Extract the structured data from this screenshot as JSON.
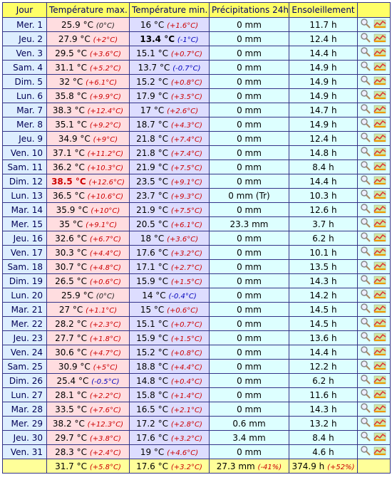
{
  "table": {
    "header": [
      "Jour",
      "Température max.",
      "Température min.",
      "Précipitations 24h",
      "Ensoleillement"
    ],
    "rows": [
      [
        "Mer. 1",
        "25.9 °C",
        "(0°C)",
        "16 °C",
        "(+1.6°C)",
        "0 mm",
        "11.7 h"
      ],
      [
        "Jeu. 2",
        "27.9 °C",
        "(+2°C)",
        "13.4 °C",
        "(-1°C)",
        "0 mm",
        "12.4 h"
      ],
      [
        "Ven. 3",
        "29.5 °C",
        "(+3.6°C)",
        "15.1 °C",
        "(+0.7°C)",
        "0 mm",
        "14.4 h"
      ],
      [
        "Sam. 4",
        "31.1 °C",
        "(+5.2°C)",
        "13.7 °C",
        "(-0.7°C)",
        "0 mm",
        "14.9 h"
      ],
      [
        "Dim. 5",
        "32 °C",
        "(+6.1°C)",
        "15.2 °C",
        "(+0.8°C)",
        "0 mm",
        "14.9 h"
      ],
      [
        "Lun. 6",
        "35.8 °C",
        "(+9.9°C)",
        "17.9 °C",
        "(+3.5°C)",
        "0 mm",
        "14.9 h"
      ],
      [
        "Mar. 7",
        "38.3 °C",
        "(+12.4°C)",
        "17 °C",
        "(+2.6°C)",
        "0 mm",
        "14.7 h"
      ],
      [
        "Mer. 8",
        "35.1 °C",
        "(+9.2°C)",
        "18.7 °C",
        "(+4.3°C)",
        "0 mm",
        "14.9 h"
      ],
      [
        "Jeu. 9",
        "34.9 °C",
        "(+9°C)",
        "21.8 °C",
        "(+7.4°C)",
        "0 mm",
        "12.4 h"
      ],
      [
        "Ven. 10",
        "37.1 °C",
        "(+11.2°C)",
        "21.8 °C",
        "(+7.4°C)",
        "0 mm",
        "14.8 h"
      ],
      [
        "Sam. 11",
        "36.2 °C",
        "(+10.3°C)",
        "21.9 °C",
        "(+7.5°C)",
        "0 mm",
        "8.4 h"
      ],
      [
        "Dim. 12",
        "38.5 °C",
        "(+12.6°C)",
        "23.5 °C",
        "(+9.1°C)",
        "0 mm",
        "14.4 h"
      ],
      [
        "Lun. 13",
        "36.5 °C",
        "(+10.6°C)",
        "23.7 °C",
        "(+9.3°C)",
        "0 mm (Tr)",
        "10.3 h"
      ],
      [
        "Mar. 14",
        "35.9 °C",
        "(+10°C)",
        "21.9 °C",
        "(+7.5°C)",
        "0 mm",
        "12.6 h"
      ],
      [
        "Mer. 15",
        "35 °C",
        "(+9.1°C)",
        "20.5 °C",
        "(+6.1°C)",
        "23.3 mm",
        "3.7 h"
      ],
      [
        "Jeu. 16",
        "32.6 °C",
        "(+6.7°C)",
        "18 °C",
        "(+3.6°C)",
        "0 mm",
        "6.2 h"
      ],
      [
        "Ven. 17",
        "30.3 °C",
        "(+4.4°C)",
        "17.6 °C",
        "(+3.2°C)",
        "0 mm",
        "10.1 h"
      ],
      [
        "Sam. 18",
        "30.7 °C",
        "(+4.8°C)",
        "17.1 °C",
        "(+2.7°C)",
        "0 mm",
        "13.5 h"
      ],
      [
        "Dim. 19",
        "26.5 °C",
        "(+0.6°C)",
        "15.9 °C",
        "(+1.5°C)",
        "0 mm",
        "14.3 h"
      ],
      [
        "Lun. 20",
        "25.9 °C",
        "(0°C)",
        "14 °C",
        "(-0.4°C)",
        "0 mm",
        "14.2 h"
      ],
      [
        "Mar. 21",
        "27 °C",
        "(+1.1°C)",
        "15 °C",
        "(+0.6°C)",
        "0 mm",
        "14.5 h"
      ],
      [
        "Mer. 22",
        "28.2 °C",
        "(+2.3°C)",
        "15.1 °C",
        "(+0.7°C)",
        "0 mm",
        "14.5 h"
      ],
      [
        "Jeu. 23",
        "27.7 °C",
        "(+1.8°C)",
        "15.9 °C",
        "(+1.5°C)",
        "0 mm",
        "13.6 h"
      ],
      [
        "Ven. 24",
        "30.6 °C",
        "(+4.7°C)",
        "15.2 °C",
        "(+0.8°C)",
        "0 mm",
        "14.4 h"
      ],
      [
        "Sam. 25",
        "30.9 °C",
        "(+5°C)",
        "18.8 °C",
        "(+4.4°C)",
        "0 mm",
        "12.2 h"
      ],
      [
        "Dim. 26",
        "25.4 °C",
        "(-0.5°C)",
        "14.8 °C",
        "(+0.4°C)",
        "0 mm",
        "6.2 h"
      ],
      [
        "Lun. 27",
        "28.1 °C",
        "(+2.2°C)",
        "15.8 °C",
        "(+1.4°C)",
        "0 mm",
        "11.6 h"
      ],
      [
        "Mar. 28",
        "33.5 °C",
        "(+7.6°C)",
        "16.5 °C",
        "(+2.1°C)",
        "0 mm",
        "14.3 h"
      ],
      [
        "Mer. 29",
        "38.2 °C",
        "(+12.3°C)",
        "17.2 °C",
        "(+2.8°C)",
        "0.6 mm",
        "13.2 h"
      ],
      [
        "Jeu. 30",
        "29.7 °C",
        "(+3.8°C)",
        "17.6 °C",
        "(+3.2°C)",
        "3.4 mm",
        "8.4 h"
      ],
      [
        "Ven. 31",
        "28.3 °C",
        "(+2.4°C)",
        "19 °C",
        "(+4.6°C)",
        "0 mm",
        "4.6 h"
      ]
    ],
    "footer": [
      "31.7 °C",
      "(+5.8°C)",
      "17.6 °C",
      "(+3.2°C)",
      "27.3 mm",
      "(-41%)",
      "374.9 h",
      "(+52%)"
    ]
  }
}
